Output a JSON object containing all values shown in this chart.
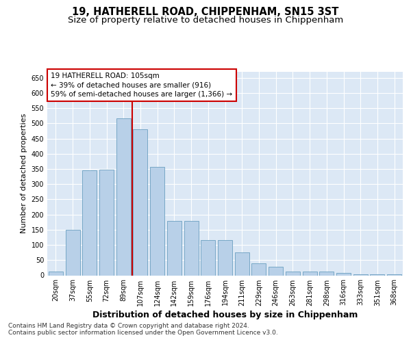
{
  "title": "19, HATHERELL ROAD, CHIPPENHAM, SN15 3ST",
  "subtitle": "Size of property relative to detached houses in Chippenham",
  "xlabel": "Distribution of detached houses by size in Chippenham",
  "ylabel": "Number of detached properties",
  "categories": [
    "20sqm",
    "37sqm",
    "55sqm",
    "72sqm",
    "89sqm",
    "107sqm",
    "124sqm",
    "142sqm",
    "159sqm",
    "176sqm",
    "194sqm",
    "211sqm",
    "229sqm",
    "246sqm",
    "263sqm",
    "281sqm",
    "298sqm",
    "316sqm",
    "333sqm",
    "351sqm",
    "368sqm"
  ],
  "values": [
    13,
    150,
    346,
    347,
    516,
    481,
    358,
    179,
    179,
    116,
    116,
    76,
    39,
    29,
    12,
    13,
    12,
    7,
    4,
    3,
    3
  ],
  "bar_color": "#b8d0e8",
  "bar_edge_color": "#6a9fc0",
  "vline_x_index": 5,
  "vline_color": "#cc0000",
  "annotation_text": "19 HATHERELL ROAD: 105sqm\n← 39% of detached houses are smaller (916)\n59% of semi-detached houses are larger (1,366) →",
  "annotation_box_color": "#ffffff",
  "annotation_box_edge": "#cc0000",
  "footnote1": "Contains HM Land Registry data © Crown copyright and database right 2024.",
  "footnote2": "Contains public sector information licensed under the Open Government Licence v3.0.",
  "ylim": [
    0,
    670
  ],
  "figure_bg": "#ffffff",
  "plot_background": "#dce8f5",
  "grid_color": "#ffffff",
  "title_fontsize": 10.5,
  "subtitle_fontsize": 9.5,
  "xlabel_fontsize": 9,
  "ylabel_fontsize": 8,
  "tick_fontsize": 7,
  "footnote_fontsize": 6.5,
  "annotation_fontsize": 7.5
}
